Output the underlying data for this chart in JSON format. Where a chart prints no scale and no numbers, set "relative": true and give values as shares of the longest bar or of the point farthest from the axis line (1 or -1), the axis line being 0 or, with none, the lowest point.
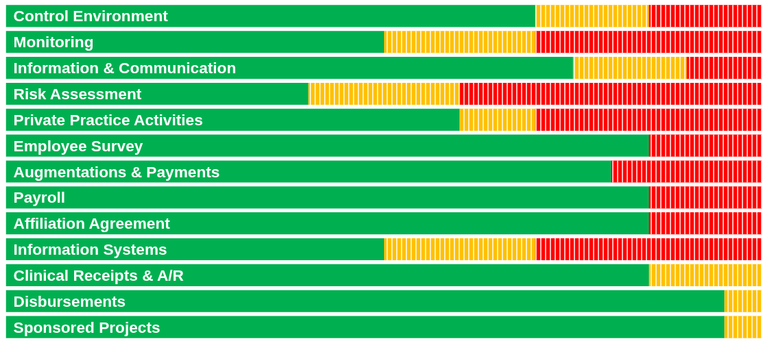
{
  "chart_data": {
    "type": "bar",
    "orientation": "horizontal",
    "stacked": true,
    "relative": true,
    "categories": [
      "Control Environment",
      "Monitoring",
      "Information & Communication",
      "Risk Assessment",
      "Private Practice Activities",
      "Employee Survey",
      "Augmentations & Payments",
      "Payroll",
      "Affiliation Agreement",
      "Information Systems",
      "Clinical Receipts & A/R",
      "Disbursements",
      "Sponsored Projects"
    ],
    "series": [
      {
        "color": "#00b050",
        "values": [
          0.7,
          0.5,
          0.75,
          0.4,
          0.6,
          0.85,
          0.8,
          0.85,
          0.85,
          0.5,
          0.85,
          0.95,
          0.95
        ]
      },
      {
        "color": "#ffc000",
        "values": [
          0.15,
          0.2,
          0.15,
          0.2,
          0.1,
          0,
          0,
          0,
          0,
          0.2,
          0.15,
          0.05,
          0.05
        ]
      },
      {
        "color": "#ff0000",
        "values": [
          0.15,
          0.3,
          0.1,
          0.4,
          0.3,
          0.15,
          0.2,
          0.15,
          0.15,
          0.3,
          0,
          0,
          0
        ]
      }
    ]
  }
}
